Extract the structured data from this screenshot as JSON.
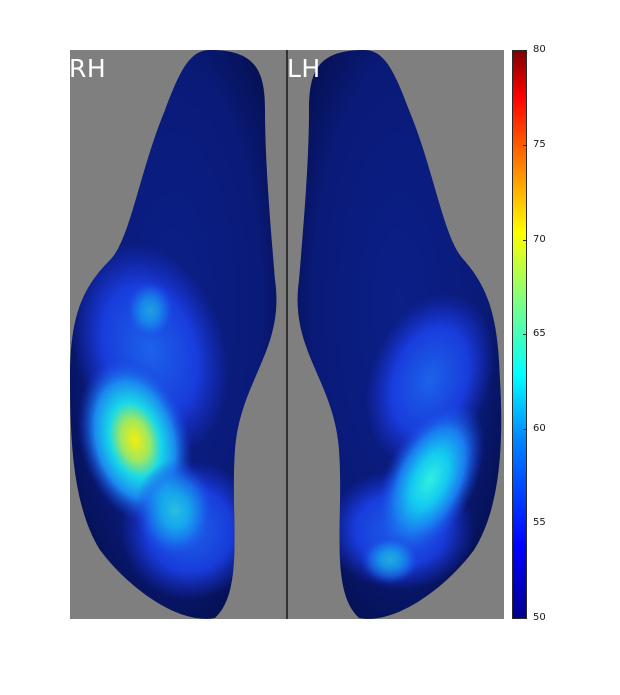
{
  "figure": {
    "hemispheres": {
      "right_label": "RH",
      "left_label": "LH"
    },
    "colors": {
      "background_panel": "#7f7f7f",
      "surface_base": "#0a1a78",
      "divider": "#000000"
    },
    "colorbar": {
      "min": 50,
      "max": 80,
      "colormap": "jet",
      "ticks": [
        "80",
        "75",
        "70",
        "65",
        "60",
        "55",
        "50"
      ]
    }
  }
}
